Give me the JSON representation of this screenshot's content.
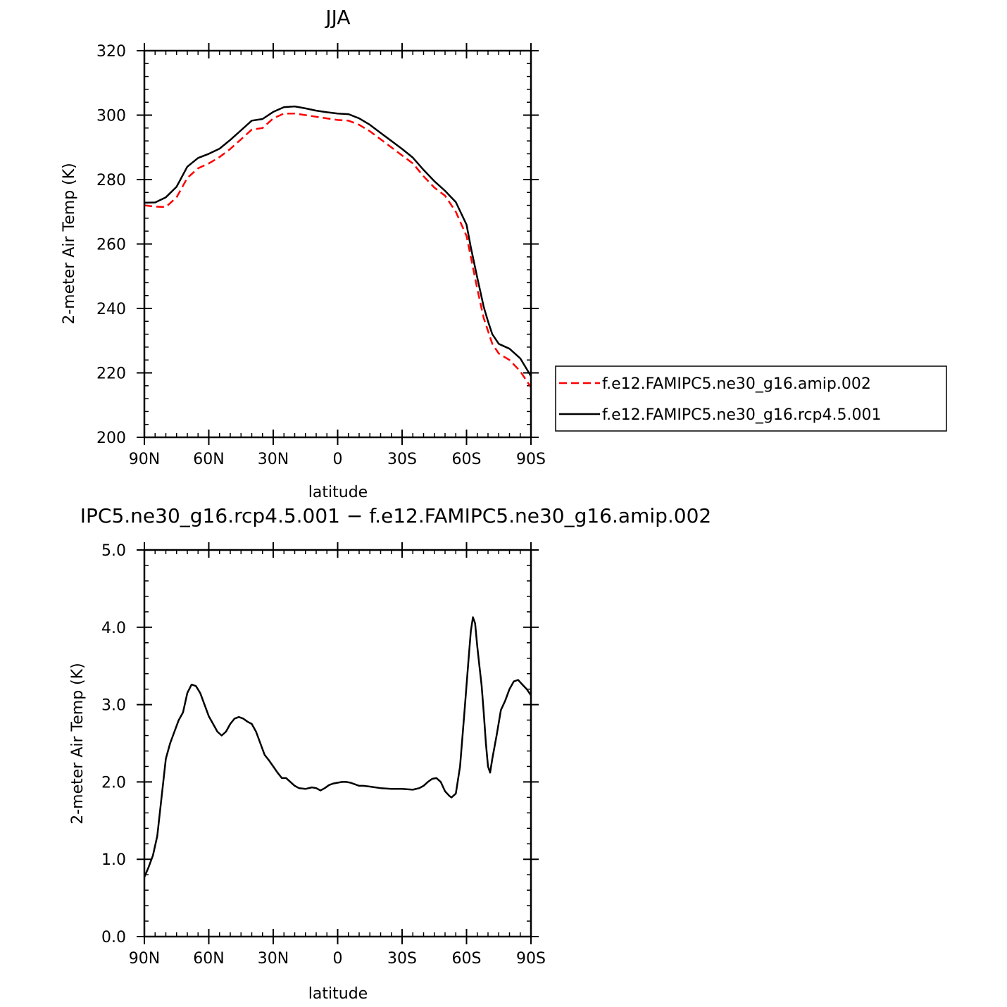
{
  "chart_data": [
    {
      "type": "line",
      "title": "JJA",
      "xlabel": "latitude",
      "ylabel": "2-meter Air Temp (K)",
      "xlim": [
        90,
        -90
      ],
      "ylim": [
        200,
        320
      ],
      "x_ticks": [
        {
          "value": 90,
          "label": "90N"
        },
        {
          "value": 60,
          "label": "60N"
        },
        {
          "value": 30,
          "label": "30N"
        },
        {
          "value": 0,
          "label": "0"
        },
        {
          "value": -30,
          "label": "30S"
        },
        {
          "value": -60,
          "label": "60S"
        },
        {
          "value": -90,
          "label": "90S"
        }
      ],
      "y_ticks": [
        {
          "value": 200,
          "label": "200"
        },
        {
          "value": 220,
          "label": "220"
        },
        {
          "value": 240,
          "label": "240"
        },
        {
          "value": 260,
          "label": "260"
        },
        {
          "value": 280,
          "label": "280"
        },
        {
          "value": 300,
          "label": "300"
        },
        {
          "value": 320,
          "label": "320"
        }
      ],
      "grid": false,
      "legend": "right",
      "x": [
        90,
        85,
        80,
        75,
        70,
        65,
        60,
        55,
        50,
        45,
        40,
        35,
        30,
        25,
        20,
        15,
        10,
        5,
        0,
        -5,
        -10,
        -15,
        -20,
        -25,
        -30,
        -35,
        -40,
        -45,
        -50,
        -55,
        -60,
        -62,
        -65,
        -68,
        -70,
        -72,
        -75,
        -80,
        -85,
        -90
      ],
      "series": [
        {
          "name": "f.e12.FAMIPC5.ne30_g16.amip.002",
          "color": "#ff0000",
          "dash": "dashed",
          "values": [
            272.0,
            271.6,
            271.5,
            274.5,
            280.5,
            283.5,
            285.0,
            287.0,
            289.5,
            292.5,
            295.5,
            296.0,
            299.0,
            300.5,
            300.5,
            300.0,
            299.5,
            299.0,
            298.5,
            298.3,
            297.0,
            295.0,
            292.5,
            290.0,
            287.5,
            285.0,
            281.0,
            277.5,
            275.0,
            270.0,
            262.5,
            256.0,
            246.0,
            237.0,
            233.0,
            229.0,
            226.0,
            224.0,
            220.5,
            215.5
          ]
        },
        {
          "name": "f.e12.FAMIPC5.ne30_g16.rcp4.5.001",
          "color": "#000000",
          "dash": "solid",
          "values": [
            272.8,
            272.9,
            274.5,
            277.8,
            284.0,
            286.7,
            288.0,
            289.6,
            292.3,
            295.3,
            298.3,
            298.8,
            301.0,
            302.5,
            302.7,
            302.1,
            301.4,
            300.9,
            300.5,
            300.3,
            299.0,
            297.0,
            294.5,
            292.0,
            289.5,
            286.8,
            283.0,
            279.5,
            276.5,
            273.0,
            266.0,
            259.0,
            249.5,
            240.5,
            236.0,
            232.0,
            229.0,
            227.5,
            224.5,
            219.0
          ]
        }
      ]
    },
    {
      "type": "line",
      "title": "IPC5.ne30_g16.rcp4.5.001 − f.e12.FAMIPC5.ne30_g16.amip.002",
      "xlabel": "latitude",
      "ylabel": "2-meter Air Temp (K)",
      "xlim": [
        90,
        -90
      ],
      "ylim": [
        0.0,
        5.0
      ],
      "x_ticks": [
        {
          "value": 90,
          "label": "90N"
        },
        {
          "value": 60,
          "label": "60N"
        },
        {
          "value": 30,
          "label": "30N"
        },
        {
          "value": 0,
          "label": "0"
        },
        {
          "value": -30,
          "label": "30S"
        },
        {
          "value": -60,
          "label": "60S"
        },
        {
          "value": -90,
          "label": "90S"
        }
      ],
      "y_ticks": [
        {
          "value": 0.0,
          "label": "0.0"
        },
        {
          "value": 1.0,
          "label": "1.0"
        },
        {
          "value": 2.0,
          "label": "2.0"
        },
        {
          "value": 3.0,
          "label": "3.0"
        },
        {
          "value": 4.0,
          "label": "4.0"
        },
        {
          "value": 5.0,
          "label": "5.0"
        }
      ],
      "grid": false,
      "x": [
        90,
        88,
        86,
        84,
        82,
        80,
        78,
        76,
        74,
        72,
        70,
        68,
        66,
        64,
        62,
        60,
        58,
        56,
        54,
        52,
        50,
        48,
        46,
        44,
        42,
        40,
        38,
        36,
        34,
        32,
        30,
        28,
        26,
        24,
        22,
        20,
        18,
        15,
        12,
        10,
        8,
        6,
        4,
        2,
        0,
        -2,
        -4,
        -6,
        -8,
        -10,
        -12,
        -15,
        -20,
        -25,
        -30,
        -35,
        -38,
        -40,
        -42,
        -44,
        -46,
        -48,
        -50,
        -52,
        -53,
        -55,
        -57,
        -59,
        -61,
        -62,
        -63,
        -64,
        -65,
        -66,
        -67,
        -68,
        -69,
        -70,
        -71,
        -72,
        -74,
        -76,
        -78,
        -80,
        -82,
        -84,
        -86,
        -88,
        -90
      ],
      "series": [
        {
          "name": "",
          "color": "#000000",
          "dash": "solid",
          "values": [
            0.77,
            0.9,
            1.05,
            1.3,
            1.8,
            2.3,
            2.5,
            2.65,
            2.8,
            2.9,
            3.15,
            3.26,
            3.24,
            3.15,
            3.0,
            2.85,
            2.75,
            2.65,
            2.6,
            2.65,
            2.75,
            2.82,
            2.84,
            2.82,
            2.78,
            2.75,
            2.65,
            2.5,
            2.35,
            2.28,
            2.2,
            2.12,
            2.05,
            2.05,
            2.0,
            1.95,
            1.92,
            1.91,
            1.93,
            1.92,
            1.89,
            1.92,
            1.96,
            1.98,
            1.99,
            2.0,
            2.0,
            1.99,
            1.97,
            1.95,
            1.95,
            1.94,
            1.92,
            1.91,
            1.91,
            1.9,
            1.92,
            1.95,
            2.0,
            2.04,
            2.05,
            2.0,
            1.88,
            1.82,
            1.8,
            1.85,
            2.2,
            2.9,
            3.6,
            3.95,
            4.13,
            4.05,
            3.75,
            3.5,
            3.25,
            2.9,
            2.5,
            2.2,
            2.12,
            2.3,
            2.6,
            2.93,
            3.05,
            3.2,
            3.3,
            3.32,
            3.26,
            3.2,
            3.12
          ]
        }
      ]
    }
  ]
}
